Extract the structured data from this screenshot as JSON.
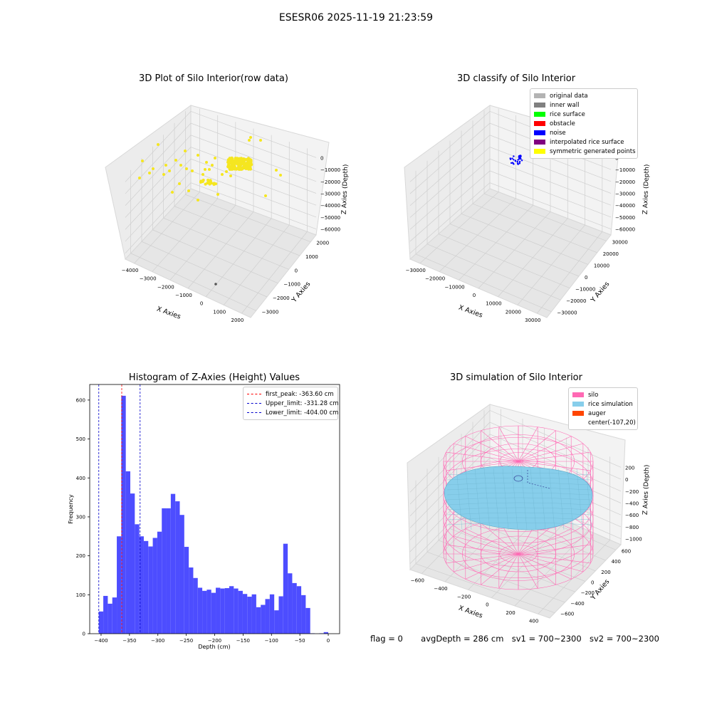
{
  "suptitle": "ESESR06 2025-11-19 21:23:59",
  "status": {
    "flag": "flag = 0",
    "avg_depth": "avgDepth = 286 cm",
    "sv1": "sv1 = 700~2300",
    "sv2": "sv2 = 700~2300"
  },
  "chart_data": [
    {
      "id": "raw",
      "type": "scatter",
      "title": "3D Plot of Silo Interior(row data)",
      "xlabel": "X Axies",
      "ylabel": "Y Axies",
      "zlabel": "Z Axies (Depth)",
      "x_ticks": [
        "−4000",
        "−3000",
        "−2000",
        "−1000",
        "0",
        "1000",
        "2000"
      ],
      "y_ticks": [
        "−3000",
        "−2000",
        "−1000",
        "0",
        "1000",
        "2000"
      ],
      "z_ticks": [
        "0",
        "−10000",
        "−20000",
        "−30000",
        "−40000",
        "−50000",
        "−60000"
      ],
      "point_color": "#f5e620"
    },
    {
      "id": "classify",
      "type": "scatter",
      "title": "3D classify of Silo Interior",
      "xlabel": "X Axies",
      "ylabel": "Y Axies",
      "zlabel": "Z Axies (Depth)",
      "x_ticks": [
        "−30000",
        "−20000",
        "−10000",
        "0",
        "10000",
        "20000",
        "30000"
      ],
      "y_ticks": [
        "−30000",
        "−20000",
        "−10000",
        "0",
        "10000",
        "20000",
        "30000"
      ],
      "z_ticks": [
        "0",
        "−10000",
        "−20000",
        "−30000",
        "−40000",
        "−50000",
        "−60000"
      ],
      "legend": [
        {
          "label": "original data",
          "color": "#b3b3b3"
        },
        {
          "label": "inner wall",
          "color": "#808080"
        },
        {
          "label": "rice surface",
          "color": "#00ff00"
        },
        {
          "label": "obstacle",
          "color": "#ff0000"
        },
        {
          "label": "noise",
          "color": "#0000ff"
        },
        {
          "label": "interpolated rice surface",
          "color": "#800080"
        },
        {
          "label": "symmetric generated points",
          "color": "#ffff00"
        }
      ]
    },
    {
      "id": "histogram",
      "type": "bar",
      "title": "Histogram of Z-Axies (Height) Values",
      "xlabel": "Depth (cm)",
      "ylabel": "Frequency",
      "xlim": [
        -420,
        20
      ],
      "ylim": [
        0,
        640
      ],
      "x_ticks": [
        -400,
        -350,
        -300,
        -250,
        -200,
        -150,
        -100,
        -50,
        0
      ],
      "y_ticks": [
        0,
        100,
        200,
        300,
        400,
        500,
        600
      ],
      "bin_edges_start": -404,
      "bin_width": 7.92,
      "values": [
        57,
        97,
        77,
        93,
        250,
        611,
        417,
        360,
        281,
        250,
        238,
        224,
        246,
        262,
        322,
        322,
        359,
        340,
        305,
        223,
        170,
        143,
        118,
        110,
        113,
        105,
        118,
        116,
        117,
        122,
        116,
        110,
        102,
        95,
        101,
        68,
        74,
        89,
        101,
        60,
        96,
        231,
        155,
        130,
        122,
        99,
        66,
        1,
        0,
        1,
        4
      ],
      "bar_color": "#4d4dff",
      "lines": [
        {
          "label": "first_peak: -363.60 cm",
          "x": -363.6,
          "color": "#ff0000"
        },
        {
          "label": "Upper_limit: -331.28 cm",
          "x": -331.28,
          "color": "#0000cc"
        },
        {
          "label": "Lower_limit: -404.00 cm",
          "x": -404.0,
          "color": "#0000cc"
        }
      ]
    },
    {
      "id": "simulation",
      "type": "surface",
      "title": "3D simulation of Silo Interior",
      "xlabel": "X Axies",
      "ylabel": "Y Axies",
      "zlabel": "Z Axies (Depth)",
      "x_ticks": [
        "−600",
        "−400",
        "−200",
        "0",
        "200",
        "400"
      ],
      "y_ticks": [
        "−600",
        "−400",
        "−200",
        "0",
        "200",
        "400",
        "600"
      ],
      "z_ticks": [
        "200",
        "0",
        "−200",
        "−400",
        "−600",
        "−800",
        "−1000"
      ],
      "legend": [
        {
          "label": "silo",
          "color": "#ff69b4"
        },
        {
          "label": "rice simulation",
          "color": "#87ceeb"
        },
        {
          "label": "auger",
          "color": "#ff4500"
        },
        {
          "label": "center(-107,20)",
          "color": "#ffffff"
        }
      ]
    }
  ]
}
